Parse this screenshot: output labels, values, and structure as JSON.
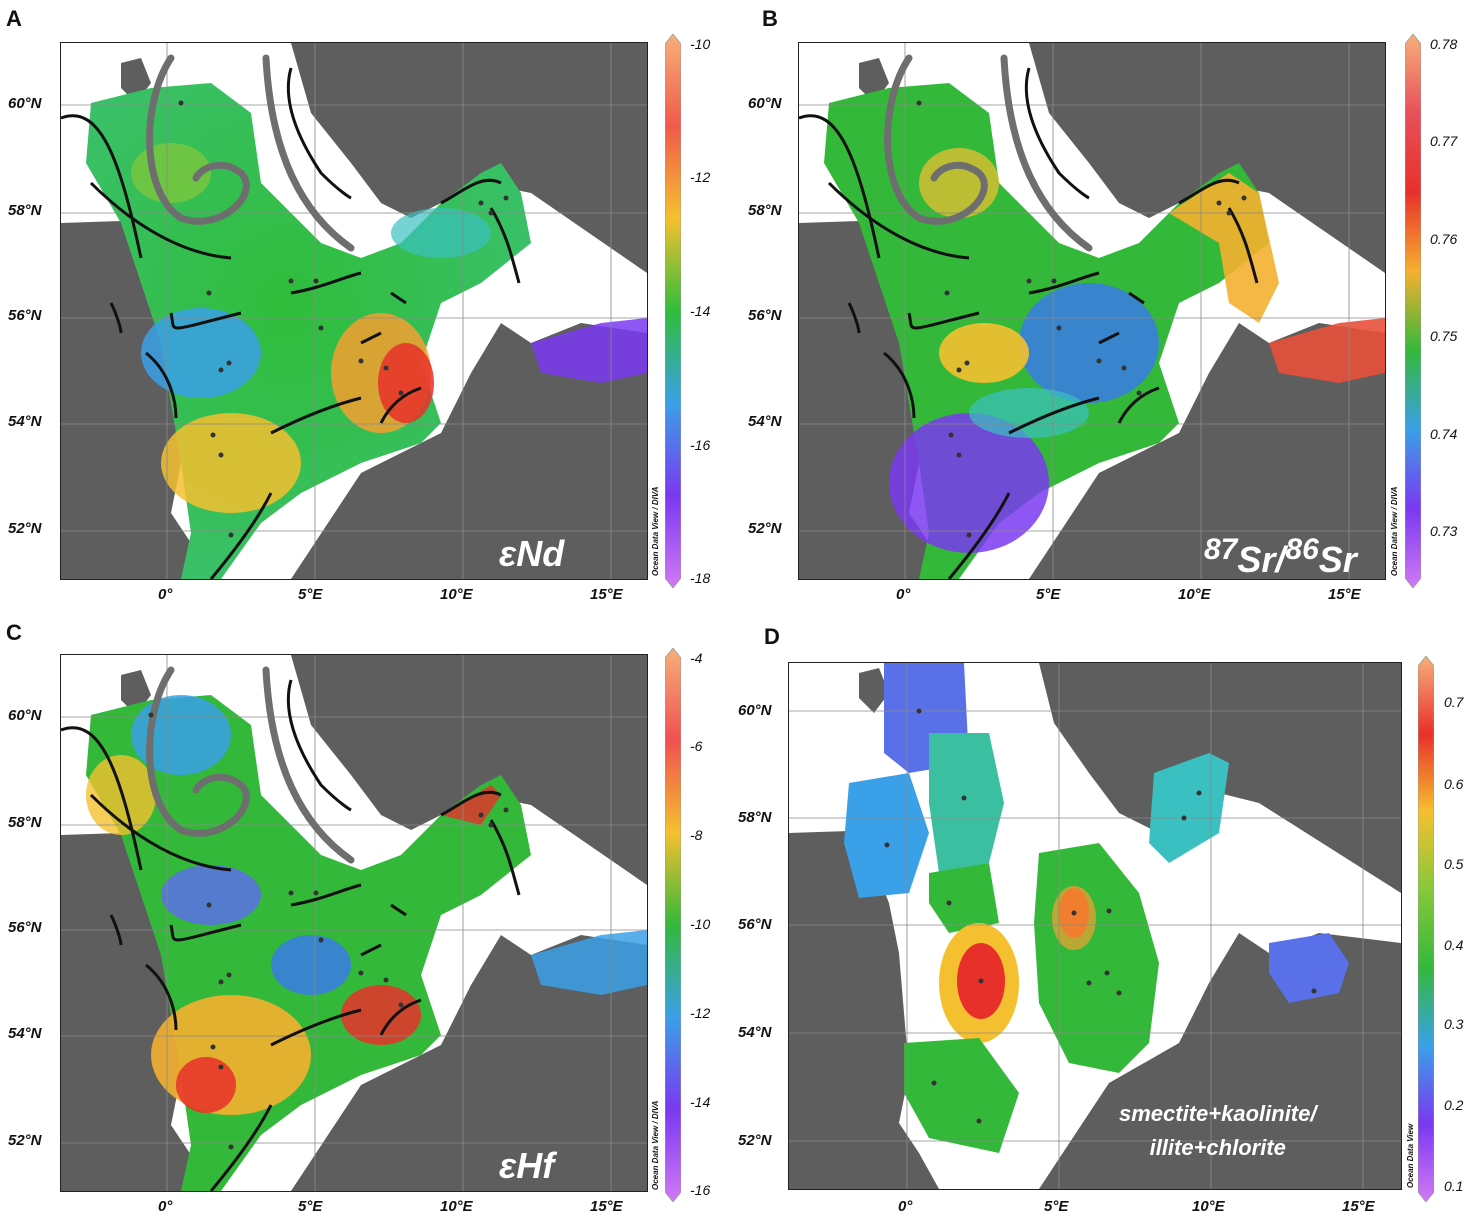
{
  "panels": [
    {
      "letter": "A",
      "title_html": "εNd",
      "title_text": "εNd",
      "colorbar": {
        "labels": [
          "-10",
          "-12",
          "-14",
          "-16",
          "-18"
        ],
        "stops": [
          "#f7b07a",
          "#f05a4a",
          "#f5c030",
          "#2fbd3a",
          "#3aa0e8",
          "#7a38f0",
          "#d27af5"
        ]
      },
      "credit": "Ocean Data View / DIVA"
    },
    {
      "letter": "B",
      "title_html": "<sup>87</sup>Sr/<sup>86</sup>Sr",
      "title_text": "87Sr/86Sr",
      "colorbar": {
        "labels": [
          "0.78",
          "0.77",
          "0.76",
          "0.75",
          "0.74",
          "0.73"
        ],
        "stops": [
          "#f7b07a",
          "#e8505a",
          "#e8302a",
          "#f5b030",
          "#34b83a",
          "#3aa0e8",
          "#7a38f0",
          "#d27af5"
        ]
      },
      "credit": "Ocean Data View / DIVA"
    },
    {
      "letter": "C",
      "title_html": "εHf",
      "title_text": "εHf",
      "colorbar": {
        "labels": [
          "-4",
          "-6",
          "-8",
          "-10",
          "-12",
          "-14",
          "-16"
        ],
        "stops": [
          "#f7b07a",
          "#f05050",
          "#f5c030",
          "#34b83a",
          "#3aa0e8",
          "#7a38f0",
          "#d27af5"
        ]
      },
      "credit": "Ocean Data View / DIVA"
    },
    {
      "letter": "D",
      "title_html": "smectite+kaolinite/<br>illite+chlorite",
      "title_text": "smectite+kaolinite/ illite+chlorite",
      "colorbar": {
        "labels": [
          "0.7",
          "0.6",
          "0.5",
          "0.4",
          "0.3",
          "0.2",
          "0.1"
        ],
        "stops": [
          "#f7b07a",
          "#e8302a",
          "#f5c030",
          "#86c83a",
          "#34b83a",
          "#3aa0e8",
          "#7a38f0",
          "#d27af5"
        ]
      },
      "credit": "Ocean Data View"
    }
  ],
  "lat_labels": [
    "60°N",
    "58°N",
    "56°N",
    "54°N",
    "52°N"
  ],
  "lon_labels": [
    "0°",
    "5°E",
    "10°E",
    "15°E"
  ],
  "colors": {
    "land": "#5e5e5e",
    "grid": "#8a8a8a",
    "arrow_black": "#111111",
    "arrow_gray": "#6e6e6e"
  }
}
